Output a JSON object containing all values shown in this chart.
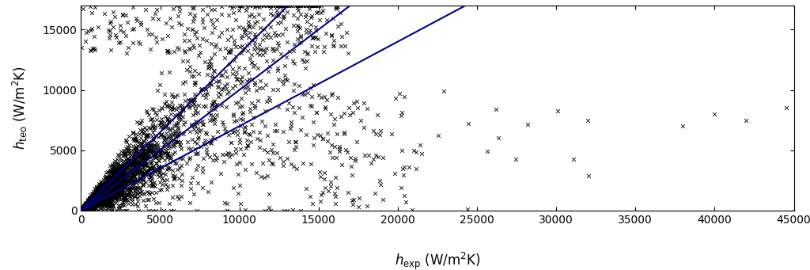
{
  "xlim": [
    0,
    45000
  ],
  "ylim": [
    0,
    17500
  ],
  "ylim_display": [
    0,
    17000
  ],
  "xticks": [
    0,
    5000,
    10000,
    15000,
    20000,
    25000,
    30000,
    35000,
    40000,
    45000
  ],
  "yticks": [
    0,
    5000,
    10000,
    15000
  ],
  "line_color": "#00008B",
  "line_slopes": [
    1.0,
    1.3,
    0.7
  ],
  "marker_color": "black",
  "marker": "x",
  "marker_size": 3.5,
  "marker_lw": 0.6,
  "background_color": "white",
  "fig_width": 10.24,
  "fig_height": 3.41,
  "dpi": 100,
  "tick_labelsize": 10,
  "xlabel_fontsize": 12,
  "ylabel_fontsize": 12
}
